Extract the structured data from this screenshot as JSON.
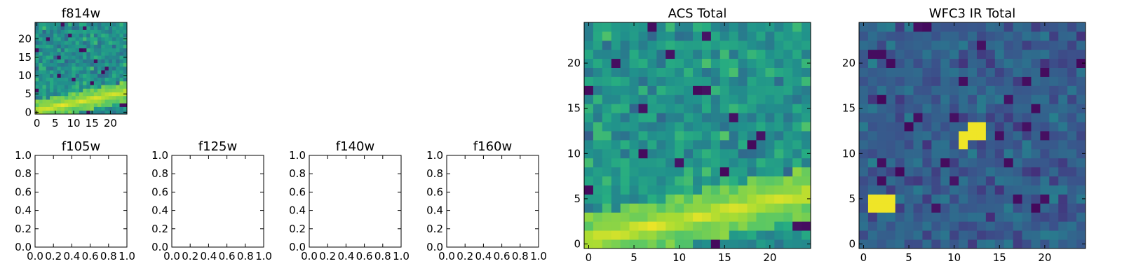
{
  "colors": {
    "low": "#440154",
    "mid": "#21918c",
    "high": "#fde725",
    "frame": "#000000"
  },
  "chart_data": [
    {
      "type": "heatmap",
      "title": "f814w",
      "xlim": [
        -0.5,
        24.5
      ],
      "ylim": [
        -0.5,
        24.5
      ],
      "xticks": [
        0,
        5,
        10,
        15,
        20
      ],
      "yticks": [
        0,
        5,
        10,
        15,
        20
      ],
      "features": [
        {
          "kind": "diagonal-band",
          "x": [
            0,
            24
          ],
          "y": [
            0.5,
            5.5
          ],
          "value": 0.98
        }
      ],
      "noise": {
        "mean": 0.5,
        "std": 0.12,
        "dark_pixels": 18,
        "seed": 11
      },
      "colormap": "viridis"
    },
    {
      "type": "line",
      "title": "f105w",
      "xlim": [
        0.0,
        1.0
      ],
      "ylim": [
        0.0,
        1.0
      ],
      "xticks": [
        "0.0",
        "0.2",
        "0.4",
        "0.6",
        "0.8",
        "1.0"
      ],
      "yticks": [
        "0.0",
        "0.2",
        "0.4",
        "0.6",
        "0.8",
        "1.0"
      ]
    },
    {
      "type": "line",
      "title": "f125w",
      "xlim": [
        0.0,
        1.0
      ],
      "ylim": [
        0.0,
        1.0
      ],
      "xticks": [
        "0.0",
        "0.2",
        "0.4",
        "0.6",
        "0.8",
        "1.0"
      ],
      "yticks": [
        "0.0",
        "0.2",
        "0.4",
        "0.6",
        "0.8",
        "1.0"
      ]
    },
    {
      "type": "line",
      "title": "f140w",
      "xlim": [
        0.0,
        1.0
      ],
      "ylim": [
        0.0,
        1.0
      ],
      "xticks": [
        "0.0",
        "0.2",
        "0.4",
        "0.6",
        "0.8",
        "1.0"
      ],
      "yticks": [
        "0.0",
        "0.2",
        "0.4",
        "0.6",
        "0.8",
        "1.0"
      ]
    },
    {
      "type": "line",
      "title": "f160w",
      "xlim": [
        0.0,
        1.0
      ],
      "ylim": [
        0.0,
        1.0
      ],
      "xticks": [
        "0.0",
        "0.2",
        "0.4",
        "0.6",
        "0.8",
        "1.0"
      ],
      "yticks": [
        "0.0",
        "0.2",
        "0.4",
        "0.6",
        "0.8",
        "1.0"
      ]
    },
    {
      "type": "heatmap",
      "title": "ACS Total",
      "xlim": [
        -0.5,
        24.5
      ],
      "ylim": [
        -0.5,
        24.5
      ],
      "xticks": [
        0,
        5,
        10,
        15,
        20
      ],
      "yticks": [
        0,
        5,
        10,
        15,
        20
      ],
      "features": [
        {
          "kind": "diagonal-band",
          "x": [
            0,
            24
          ],
          "y": [
            0.5,
            5.5
          ],
          "value": 0.98
        }
      ],
      "noise": {
        "mean": 0.52,
        "std": 0.12,
        "dark_pixels": 18,
        "seed": 11
      },
      "colormap": "viridis"
    },
    {
      "type": "heatmap",
      "title": "WFC3 IR Total",
      "xlim": [
        -0.5,
        24.5
      ],
      "ylim": [
        -0.5,
        24.5
      ],
      "xticks": [
        0,
        5,
        10,
        15,
        20
      ],
      "yticks": [
        0,
        5,
        10,
        15,
        20
      ],
      "features": [
        {
          "kind": "blob",
          "cells": [
            [
              1,
              4
            ],
            [
              2,
              4
            ],
            [
              3,
              4
            ],
            [
              1,
              5
            ],
            [
              2,
              5
            ],
            [
              3,
              5
            ]
          ],
          "value": 0.98
        },
        {
          "kind": "blob",
          "cells": [
            [
              11,
              11
            ],
            [
              11,
              12
            ],
            [
              12,
              12
            ],
            [
              13,
              12
            ],
            [
              12,
              13
            ],
            [
              13,
              13
            ]
          ],
          "value": 0.98
        }
      ],
      "noise": {
        "mean": 0.3,
        "std": 0.08,
        "dark_pixels": 30,
        "seed": 29
      },
      "colormap": "viridis"
    }
  ]
}
